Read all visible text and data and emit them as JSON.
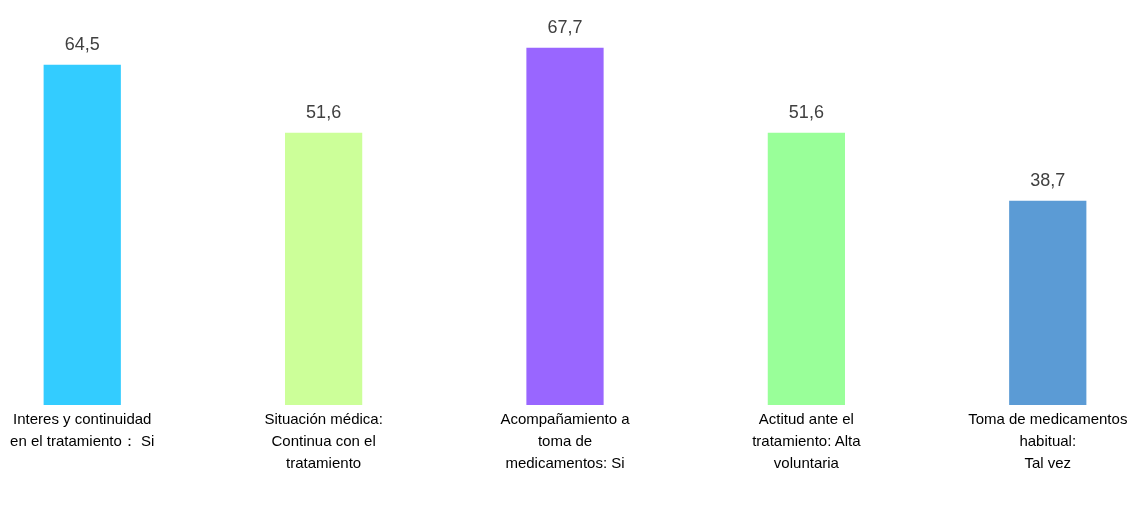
{
  "chart_data": {
    "type": "bar",
    "categories": [
      "Interes y continuidad\nen el tratamiento： Si",
      "Situación médica:\nContinua con el\ntratamiento",
      "Acompañamiento a\ntoma de\nmedicamentos: Si",
      "Actitud ante el\ntratamiento: Alta\nvoluntaria",
      "Toma de medicamentos\nhabitual:\nTal vez"
    ],
    "values": [
      64.5,
      51.6,
      67.7,
      51.6,
      38.7
    ],
    "colors": [
      "#33ccff",
      "#ccff99",
      "#9966ff",
      "#99ff99",
      "#5b9bd5"
    ],
    "value_labels": [
      "64,5",
      "51,6",
      "67,7",
      "51,6",
      "38,7"
    ],
    "grid": false
  }
}
